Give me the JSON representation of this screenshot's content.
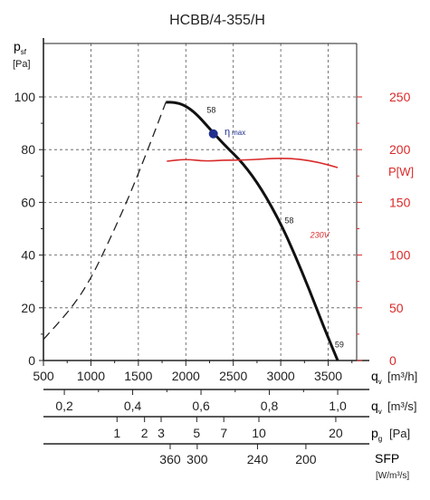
{
  "chart_data": {
    "type": "line",
    "title": "HCBB/4-355/H",
    "y_axis": {
      "label_main": "p",
      "label_sub": "sf",
      "unit": "[Pa]",
      "ticks": [
        0,
        20,
        40,
        60,
        80,
        100
      ],
      "ylim": [
        0,
        100
      ]
    },
    "power_axis": {
      "label": "P[W]",
      "ticks": [
        0,
        50,
        100,
        150,
        200,
        250
      ],
      "lim": [
        0,
        250
      ]
    },
    "x_axis": {
      "label_main": "q",
      "label_sub": "v",
      "unit": "[m³/h]",
      "ticks": [
        500,
        1000,
        1500,
        2000,
        2500,
        3000,
        3500
      ],
      "xlim": [
        500,
        3800
      ]
    },
    "secondary_scales": [
      {
        "name": "q_v m3s",
        "label_main": "q",
        "label_sub": "v",
        "unit": "[m³/s]",
        "ticks": [
          {
            "value": 0.2,
            "text": "0,2"
          },
          {
            "value": 0.4,
            "text": "0,4"
          },
          {
            "value": 0.6,
            "text": "0,6"
          },
          {
            "value": 0.8,
            "text": "0,8"
          },
          {
            "value": 1.0,
            "text": "1,0"
          }
        ]
      },
      {
        "name": "p_g",
        "label_main": "p",
        "label_sub": "g",
        "unit": "[Pa]",
        "ticks": [
          {
            "q": 1275,
            "text": "1"
          },
          {
            "q": 1565,
            "text": "2"
          },
          {
            "q": 1740,
            "text": "3"
          },
          {
            "q": 2115,
            "text": "5"
          },
          {
            "q": 2400,
            "text": "7"
          },
          {
            "q": 2770,
            "text": "10"
          },
          {
            "q": 3580,
            "text": "20"
          }
        ]
      },
      {
        "name": "SFP",
        "label": "SFP",
        "unit": "[W/m³/s]",
        "ticks": [
          {
            "q": 1835,
            "text": "360"
          },
          {
            "q": 2120,
            "text": "300"
          },
          {
            "q": 2755,
            "text": "240"
          },
          {
            "q": 3265,
            "text": "200"
          }
        ]
      }
    ],
    "series": [
      {
        "name": "",
        "style": "dashed",
        "color": "#222222",
        "x": [
          500,
          800,
          1000,
          1200,
          1400,
          1600,
          1790
        ],
        "y": [
          8,
          20,
          31,
          46,
          62,
          80,
          98
        ]
      },
      {
        "name": "",
        "style": "solid",
        "color": "#111111",
        "x": [
          1790,
          1880,
          1980,
          2100,
          2250,
          2400,
          2600,
          2800,
          3000,
          3150,
          3300,
          3450,
          3600
        ],
        "y": [
          98,
          98,
          97,
          94,
          88,
          82,
          75,
          65,
          52,
          40,
          27,
          13,
          0
        ]
      },
      {
        "name": "230V",
        "style": "solid",
        "color": "#d92a2a",
        "axis": "power",
        "x": [
          1800,
          2000,
          2200,
          2400,
          2600,
          2800,
          3000,
          3200,
          3400,
          3600
        ],
        "y": [
          189,
          191,
          189,
          190,
          190,
          191,
          192,
          191,
          188,
          183
        ]
      }
    ],
    "annotations": [
      {
        "text": "58",
        "x": 2220,
        "y": 94
      },
      {
        "text": "58",
        "x": 3040,
        "y": 52
      },
      {
        "text": "59",
        "x": 3570,
        "y": 5
      },
      {
        "text": "230V",
        "x": 3310,
        "y": 46.5,
        "color": "#d92a2a"
      }
    ],
    "eta_max": {
      "x": 2290,
      "y": 86,
      "label": "η",
      "label_sub": "max",
      "color": "#1f2f8f"
    },
    "grid": true
  }
}
